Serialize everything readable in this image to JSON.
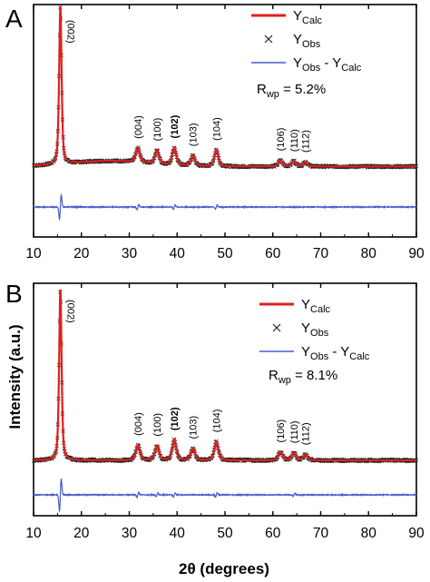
{
  "figure": {
    "y_axis_label": "Intensity (a.u.)",
    "x_axis_label": "2θ (degrees)"
  },
  "chart_data": [
    {
      "type": "line",
      "panel": "A",
      "xlabel": "",
      "ylabel": "",
      "xlim": [
        10,
        90
      ],
      "xticks": [
        "10",
        "20",
        "30",
        "40",
        "50",
        "60",
        "70",
        "80",
        "90"
      ],
      "legend": {
        "placement": "top-right",
        "entries": [
          {
            "main": "Y",
            "sub": "Calc",
            "style": "line",
            "color": "#e0201e"
          },
          {
            "main": "Y",
            "sub": "Obs",
            "style": "cross",
            "color": "#222222"
          },
          {
            "main": "Y",
            "sub": "Obs",
            "mid": " - Y",
            "sub2": "Calc",
            "style": "line",
            "color": "#4a5ad0"
          }
        ]
      },
      "rwp": {
        "prefix": "R",
        "sub": "wp",
        "value": " = 5.2%"
      },
      "baseline": 0.12,
      "hump": {
        "center": 26,
        "amplitude": 0.035,
        "width": 8
      },
      "peaks": [
        {
          "x": 15.6,
          "height": 1.0,
          "label": "(002)",
          "bold": false
        },
        {
          "x": 31.8,
          "height": 0.09,
          "label": "(004)",
          "bold": false
        },
        {
          "x": 35.8,
          "height": 0.085,
          "label": "(100)",
          "bold": false
        },
        {
          "x": 39.4,
          "height": 0.11,
          "label": "(102)",
          "bold": true
        },
        {
          "x": 43.3,
          "height": 0.065,
          "label": "(103)",
          "bold": false
        },
        {
          "x": 48.2,
          "height": 0.105,
          "label": "(104)",
          "bold": false
        },
        {
          "x": 61.6,
          "height": 0.04,
          "label": "(106)",
          "bold": false
        },
        {
          "x": 64.4,
          "height": 0.035,
          "label": "(110)",
          "bold": false
        },
        {
          "x": 66.8,
          "height": 0.03,
          "label": "(112)",
          "bold": false
        }
      ],
      "difference_spikes": [
        {
          "x": 15.6,
          "amplitude": 0.09
        },
        {
          "x": 31.8,
          "amplitude": 0.02
        },
        {
          "x": 39.4,
          "amplitude": 0.015
        },
        {
          "x": 48.2,
          "amplitude": 0.015
        }
      ]
    },
    {
      "type": "line",
      "panel": "B",
      "xlabel": "2θ (degrees)",
      "ylabel": "Intensity (a.u.)",
      "xlim": [
        10,
        90
      ],
      "xticks": [
        "10",
        "20",
        "30",
        "40",
        "50",
        "60",
        "70",
        "80",
        "90"
      ],
      "legend": {
        "placement": "top-right",
        "entries": [
          {
            "main": "Y",
            "sub": "Calc",
            "style": "line",
            "color": "#e0201e"
          },
          {
            "main": "Y",
            "sub": "Obs",
            "style": "cross",
            "color": "#222222"
          },
          {
            "main": "Y",
            "sub": "Obs",
            "mid": " - Y",
            "sub2": "Calc",
            "style": "line",
            "color": "#4a5ad0"
          }
        ]
      },
      "rwp": {
        "prefix": "R",
        "sub": "wp",
        "value": " = 8.1%"
      },
      "baseline": 0.04,
      "hump": {
        "center": 26,
        "amplitude": 0.0,
        "width": 8
      },
      "peaks": [
        {
          "x": 15.6,
          "height": 1.0,
          "label": "(002)",
          "bold": false
        },
        {
          "x": 31.8,
          "height": 0.09,
          "label": "(004)",
          "bold": false
        },
        {
          "x": 35.8,
          "height": 0.085,
          "label": "(100)",
          "bold": false
        },
        {
          "x": 39.4,
          "height": 0.12,
          "label": "(102)",
          "bold": true
        },
        {
          "x": 43.3,
          "height": 0.07,
          "label": "(103)",
          "bold": false
        },
        {
          "x": 48.2,
          "height": 0.11,
          "label": "(104)",
          "bold": false
        },
        {
          "x": 61.6,
          "height": 0.05,
          "label": "(106)",
          "bold": false
        },
        {
          "x": 64.4,
          "height": 0.045,
          "label": "(110)",
          "bold": false
        },
        {
          "x": 66.8,
          "height": 0.035,
          "label": "(112)",
          "bold": false
        }
      ],
      "difference_spikes": [
        {
          "x": 15.6,
          "amplitude": 0.12
        },
        {
          "x": 31.8,
          "amplitude": 0.02
        },
        {
          "x": 35.8,
          "amplitude": 0.015
        },
        {
          "x": 39.4,
          "amplitude": 0.015
        },
        {
          "x": 48.2,
          "amplitude": 0.015
        },
        {
          "x": 64.4,
          "amplitude": 0.01
        }
      ]
    }
  ],
  "colors": {
    "calc": "#e0201e",
    "obs": "#222222",
    "diff": "#4a5ad0",
    "axis": "#000000"
  }
}
